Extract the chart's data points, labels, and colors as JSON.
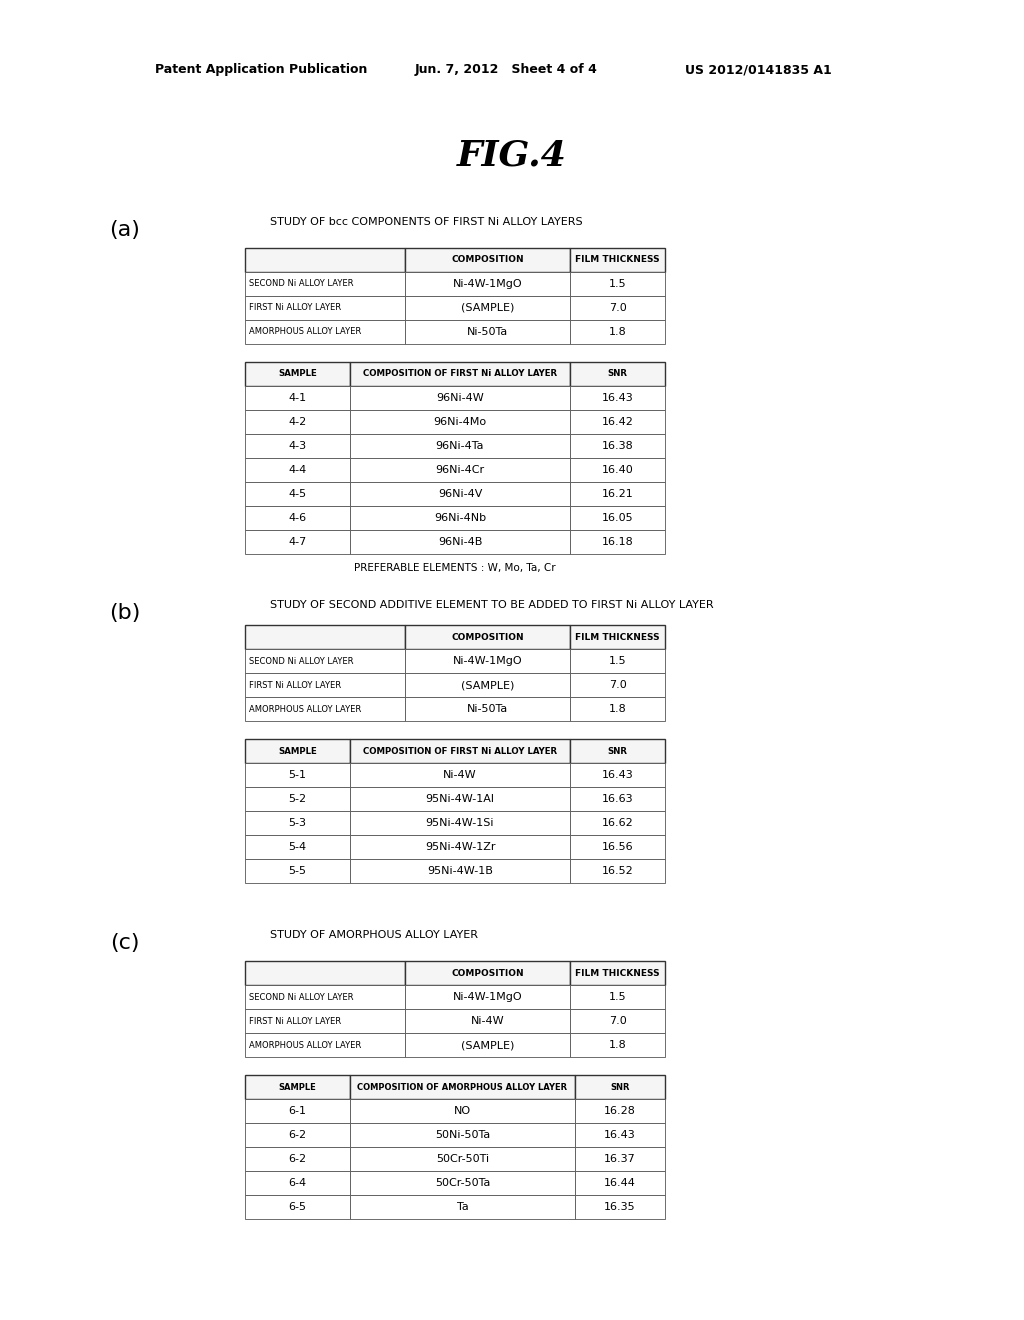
{
  "bg_color": "#ffffff",
  "header_left": "Patent Application Publication",
  "header_mid": "Jun. 7, 2012   Sheet 4 of 4",
  "header_right": "US 2012/0141835 A1",
  "fig_title": "FIG.4",
  "section_a": {
    "label": "(a)",
    "title": "STUDY OF bcc COMPONENTS OF FIRST Ni ALLOY LAYERS",
    "table1_headers": [
      "",
      "COMPOSITION",
      "FILM THICKNESS"
    ],
    "table1_rows": [
      [
        "SECOND Ni ALLOY LAYER",
        "Ni-4W-1MgO",
        "1.5"
      ],
      [
        "FIRST Ni ALLOY LAYER",
        "(SAMPLE)",
        "7.0"
      ],
      [
        "AMORPHOUS ALLOY LAYER",
        "Ni-50Ta",
        "1.8"
      ]
    ],
    "table2_headers": [
      "SAMPLE",
      "COMPOSITION OF FIRST Ni ALLOY LAYER",
      "SNR"
    ],
    "table2_rows": [
      [
        "4-1",
        "96Ni-4W",
        "16.43"
      ],
      [
        "4-2",
        "96Ni-4Mo",
        "16.42"
      ],
      [
        "4-3",
        "96Ni-4Ta",
        "16.38"
      ],
      [
        "4-4",
        "96Ni-4Cr",
        "16.40"
      ],
      [
        "4-5",
        "96Ni-4V",
        "16.21"
      ],
      [
        "4-6",
        "96Ni-4Nb",
        "16.05"
      ],
      [
        "4-7",
        "96Ni-4B",
        "16.18"
      ]
    ],
    "note": "PREFERABLE ELEMENTS : W, Mo, Ta, Cr"
  },
  "section_b": {
    "label": "(b)",
    "title": "STUDY OF SECOND ADDITIVE ELEMENT TO BE ADDED TO FIRST Ni ALLOY LAYER",
    "table1_headers": [
      "",
      "COMPOSITION",
      "FILM THICKNESS"
    ],
    "table1_rows": [
      [
        "SECOND Ni ALLOY LAYER",
        "Ni-4W-1MgO",
        "1.5"
      ],
      [
        "FIRST Ni ALLOY LAYER",
        "(SAMPLE)",
        "7.0"
      ],
      [
        "AMORPHOUS ALLOY LAYER",
        "Ni-50Ta",
        "1.8"
      ]
    ],
    "table2_headers": [
      "SAMPLE",
      "COMPOSITION OF FIRST Ni ALLOY LAYER",
      "SNR"
    ],
    "table2_rows": [
      [
        "5-1",
        "Ni-4W",
        "16.43"
      ],
      [
        "5-2",
        "95Ni-4W-1Al",
        "16.63"
      ],
      [
        "5-3",
        "95Ni-4W-1Si",
        "16.62"
      ],
      [
        "5-4",
        "95Ni-4W-1Zr",
        "16.56"
      ],
      [
        "5-5",
        "95Ni-4W-1B",
        "16.52"
      ]
    ]
  },
  "section_c": {
    "label": "(c)",
    "title": "STUDY OF AMORPHOUS ALLOY LAYER",
    "table1_headers": [
      "",
      "COMPOSITION",
      "FILM THICKNESS"
    ],
    "table1_rows": [
      [
        "SECOND Ni ALLOY LAYER",
        "Ni-4W-1MgO",
        "1.5"
      ],
      [
        "FIRST Ni ALLOY LAYER",
        "Ni-4W",
        "7.0"
      ],
      [
        "AMORPHOUS ALLOY LAYER",
        "(SAMPLE)",
        "1.8"
      ]
    ],
    "table2_headers": [
      "SAMPLE",
      "COMPOSITION OF AMORPHOUS ALLOY LAYER",
      "SNR"
    ],
    "table2_rows": [
      [
        "6-1",
        "NO",
        "16.28"
      ],
      [
        "6-2",
        "50Ni-50Ta",
        "16.43"
      ],
      [
        "6-2",
        "50Cr-50Ti",
        "16.37"
      ],
      [
        "6-4",
        "50Cr-50Ta",
        "16.44"
      ],
      [
        "6-5",
        "Ta",
        "16.35"
      ]
    ]
  }
}
